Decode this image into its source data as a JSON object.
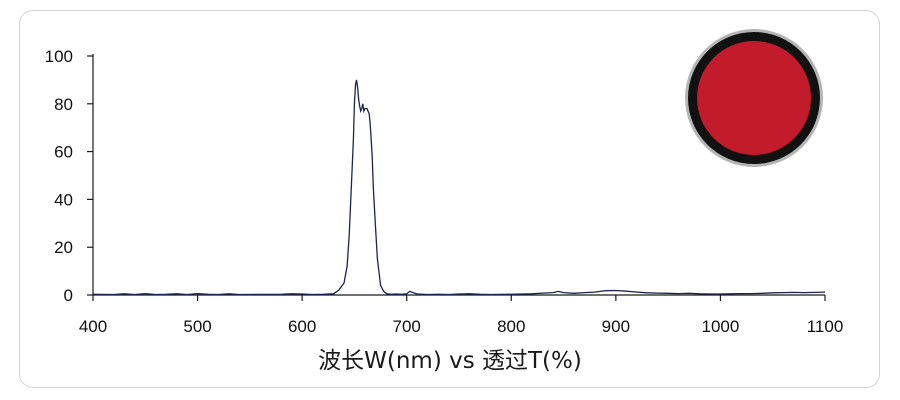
{
  "colors": {
    "line": "#1b2450",
    "axis": "#1a1a1a",
    "filter_disc": "#c21b2c",
    "filter_rim": "#111111",
    "card_border": "#d2d2d2"
  },
  "icon": "red-filter-disc-icon",
  "chart_data": {
    "type": "line",
    "title": "",
    "xlabel": "波长W(nm) vs 透过T(%)",
    "ylabel": "",
    "xlim": [
      400,
      1100
    ],
    "ylim": [
      0,
      100
    ],
    "xticks": [
      400,
      500,
      600,
      700,
      800,
      900,
      1000,
      1100
    ],
    "yticks": [
      0,
      20,
      40,
      60,
      80,
      100
    ],
    "grid": false,
    "legend": "none",
    "series": [
      {
        "x": [
          400,
          420,
          430,
          440,
          450,
          460,
          470,
          480,
          490,
          500,
          510,
          520,
          530,
          540,
          580,
          590,
          600,
          610,
          620,
          630,
          635,
          640,
          643,
          645,
          647,
          649,
          650,
          651,
          652,
          653,
          654,
          655,
          656,
          657,
          658,
          659,
          660,
          661,
          662,
          663,
          664,
          665,
          666,
          667,
          668,
          670,
          672,
          675,
          678,
          681,
          685,
          690,
          695,
          700,
          703,
          706,
          710,
          715,
          720,
          730,
          740,
          750,
          760,
          770,
          780,
          800,
          820,
          830,
          840,
          845,
          850,
          860,
          870,
          880,
          885,
          890,
          900,
          910,
          920,
          930,
          940,
          950,
          960,
          970,
          980,
          990,
          1000,
          1010,
          1020,
          1030,
          1040,
          1050,
          1060,
          1070,
          1080,
          1090,
          1100
        ],
        "y": [
          0.3,
          0.2,
          0.5,
          0.2,
          0.6,
          0.2,
          0.3,
          0.5,
          0.2,
          0.6,
          0.3,
          0.2,
          0.5,
          0.2,
          0.3,
          0.5,
          0.4,
          0.2,
          0.3,
          0.5,
          2,
          5,
          12,
          25,
          45,
          65,
          80,
          88,
          90,
          87,
          82,
          79,
          77,
          78,
          80,
          77,
          78,
          78,
          78,
          77,
          76,
          72,
          65,
          58,
          45,
          30,
          15,
          4,
          1.5,
          0.5,
          0.3,
          0.4,
          0.3,
          0.5,
          1.5,
          1.0,
          0.4,
          0.3,
          0.2,
          0.3,
          0.2,
          0.4,
          0.5,
          0.3,
          0.2,
          0.3,
          0.5,
          0.8,
          1.0,
          1.5,
          1.0,
          0.7,
          1.0,
          1.2,
          1.5,
          1.8,
          1.9,
          1.6,
          1.2,
          0.9,
          0.8,
          0.7,
          0.6,
          0.7,
          0.5,
          0.4,
          0.4,
          0.5,
          0.6,
          0.6,
          0.7,
          0.9,
          1.0,
          1.1,
          1.0,
          1.1,
          1.2
        ]
      }
    ]
  }
}
